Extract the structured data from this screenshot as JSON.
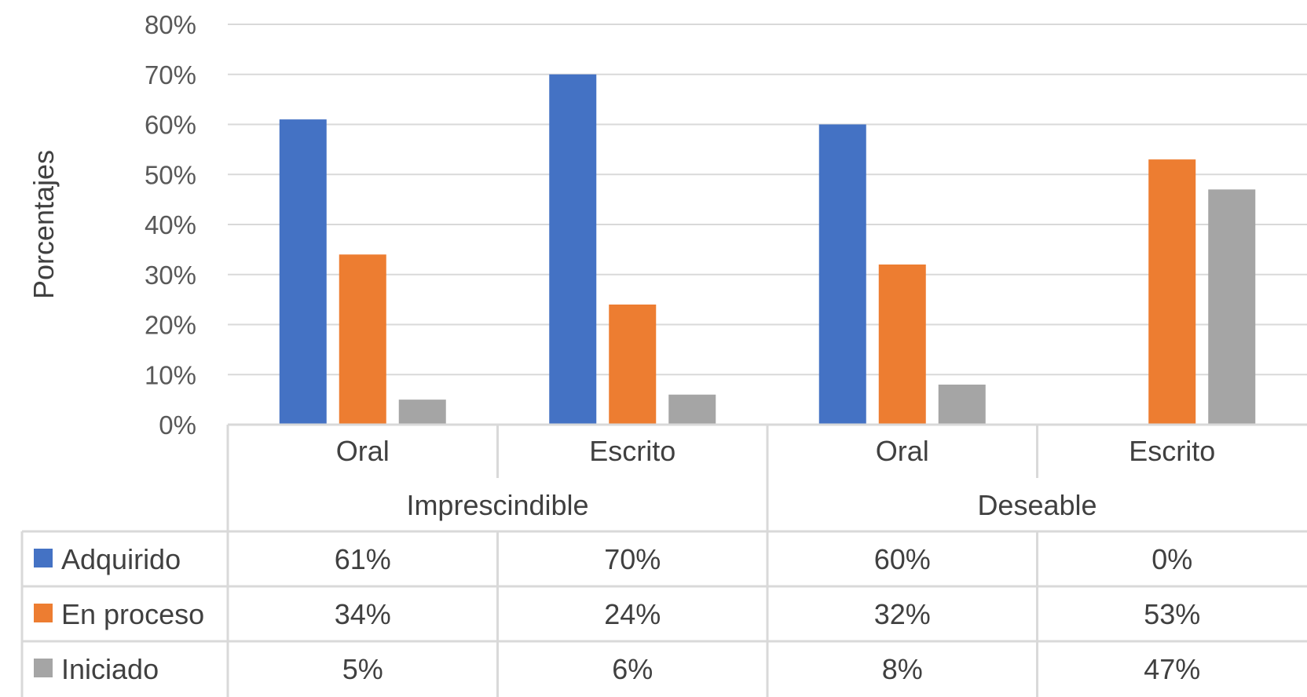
{
  "chart_data": {
    "type": "bar",
    "title": "",
    "xlabel": "",
    "ylabel": "Porcentajes",
    "ylim": [
      0,
      80
    ],
    "y_ticks": [
      "0%",
      "10%",
      "20%",
      "30%",
      "40%",
      "50%",
      "60%",
      "70%",
      "80%"
    ],
    "groups": [
      {
        "label": "Imprescindible",
        "categories": [
          "Oral",
          "Escrito"
        ]
      },
      {
        "label": "Deseable",
        "categories": [
          "Oral",
          "Escrito"
        ]
      }
    ],
    "categories": [
      "Oral",
      "Escrito",
      "Oral",
      "Escrito"
    ],
    "series": [
      {
        "name": "Adquirido",
        "color": "#4472C4",
        "values": [
          61,
          70,
          60,
          0
        ],
        "labels": [
          "61%",
          "70%",
          "60%",
          "0%"
        ]
      },
      {
        "name": "En proceso",
        "color": "#ED7D31",
        "values": [
          34,
          24,
          32,
          53
        ],
        "labels": [
          "34%",
          "24%",
          "32%",
          "53%"
        ]
      },
      {
        "name": "Iniciado",
        "color": "#A5A5A5",
        "values": [
          5,
          6,
          8,
          47
        ],
        "labels": [
          "5%",
          "6%",
          "8%",
          "47%"
        ]
      }
    ],
    "grid": true,
    "legend": "data-table"
  }
}
